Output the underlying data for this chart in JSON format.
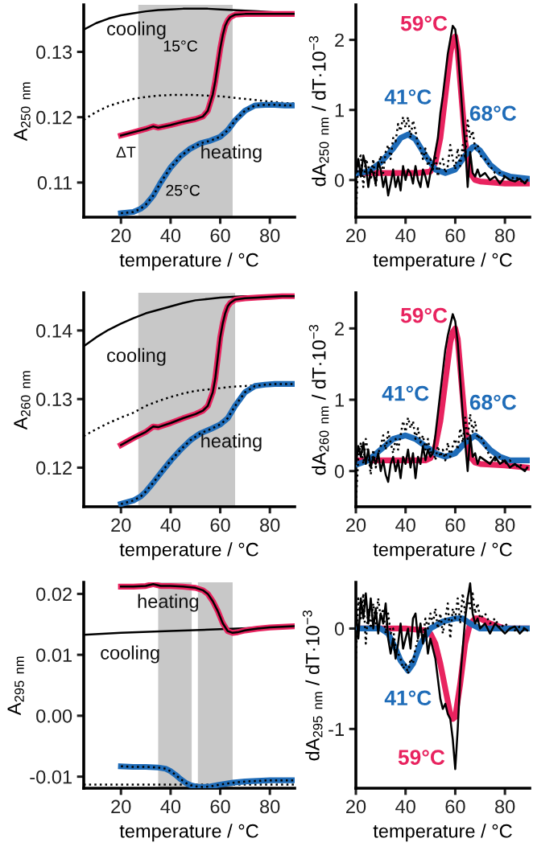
{
  "chart_data": [
    {
      "type": "line",
      "xlabel": "temperature / °C",
      "ylabel": "A$_{250 nm}$",
      "xlim": [
        5,
        90
      ],
      "ylim": [
        0.1047,
        0.1372
      ],
      "xticks": [
        20,
        40,
        60,
        80
      ],
      "yticks": [
        0.11,
        0.12,
        0.13
      ],
      "legend": false,
      "marker": "none",
      "bands": [
        {
          "axis": "x",
          "from": 51,
          "to": 65,
          "color": "#c8c8c8",
          "label": "15°C"
        },
        {
          "axis": "x",
          "from": 27,
          "to": 52,
          "color": "#c8c8c8",
          "label": "25°C"
        }
      ],
      "annotations": [
        "cooling",
        "heating",
        "ΔT"
      ],
      "series": [
        {
          "color": "#000000",
          "line_style": "solid",
          "x": [
            5,
            10,
            15,
            20,
            25,
            30,
            35,
            40,
            45,
            50,
            55,
            60,
            65,
            70,
            75,
            80,
            85,
            90
          ],
          "values": [
            0.1334,
            0.1344,
            0.1351,
            0.1356,
            0.1359,
            0.1362,
            0.1364,
            0.1365,
            0.1366,
            0.1366,
            0.1366,
            0.1365,
            0.1364,
            0.1363,
            0.1362,
            0.1361,
            0.136,
            0.136
          ]
        },
        {
          "color": "#000000",
          "line_style": "dotted",
          "x": [
            5,
            10,
            15,
            20,
            25,
            30,
            35,
            40,
            45,
            50,
            55,
            60,
            65,
            70,
            75,
            80,
            85,
            90
          ],
          "values": [
            0.1196,
            0.1208,
            0.1217,
            0.1223,
            0.1228,
            0.1231,
            0.1233,
            0.1234,
            0.1234,
            0.1234,
            0.1233,
            0.1232,
            0.123,
            0.1228,
            0.1226,
            0.1224,
            0.1222,
            0.1221
          ]
        },
        {
          "color": "#e8235f",
          "line_style": "solid",
          "x": [
            20,
            25,
            30,
            33,
            35,
            40,
            45,
            50,
            53,
            55,
            57,
            58,
            59,
            60,
            61,
            62,
            63,
            64,
            66,
            70,
            75,
            80,
            85,
            90
          ],
          "values": [
            0.1172,
            0.1177,
            0.1182,
            0.1186,
            0.1184,
            0.1188,
            0.1193,
            0.1197,
            0.1201,
            0.121,
            0.1235,
            0.1255,
            0.128,
            0.1305,
            0.1325,
            0.134,
            0.1348,
            0.1353,
            0.1357,
            0.1358,
            0.1358,
            0.1358,
            0.1358,
            0.1358
          ]
        },
        {
          "color": "#000000",
          "line_style": "solid",
          "x": [
            20,
            25,
            30,
            33,
            35,
            40,
            45,
            50,
            53,
            55,
            57,
            58,
            59,
            60,
            61,
            62,
            63,
            64,
            66,
            70,
            75,
            80,
            85,
            90
          ],
          "values": [
            0.1172,
            0.1177,
            0.1182,
            0.1186,
            0.1184,
            0.1188,
            0.1193,
            0.1197,
            0.1201,
            0.121,
            0.1235,
            0.1255,
            0.128,
            0.1305,
            0.1325,
            0.134,
            0.1348,
            0.1353,
            0.1357,
            0.1358,
            0.1358,
            0.1358,
            0.1358,
            0.1358
          ]
        },
        {
          "color": "#1f6cb8",
          "line_style": "solid",
          "x": [
            20,
            25,
            28,
            30,
            33,
            36,
            40,
            44,
            48,
            52,
            56,
            60,
            63,
            66,
            70,
            74,
            78,
            82,
            86,
            90
          ],
          "values": [
            0.1053,
            0.1055,
            0.106,
            0.1066,
            0.108,
            0.11,
            0.1123,
            0.114,
            0.1152,
            0.116,
            0.1164,
            0.117,
            0.118,
            0.1195,
            0.121,
            0.1218,
            0.1219,
            0.1219,
            0.1218,
            0.1218
          ]
        },
        {
          "color": "#000000",
          "line_style": "dotted",
          "x": [
            20,
            25,
            28,
            30,
            33,
            36,
            40,
            44,
            48,
            52,
            56,
            60,
            63,
            66,
            70,
            74,
            78,
            82,
            86,
            90
          ],
          "values": [
            0.1053,
            0.1055,
            0.106,
            0.1066,
            0.108,
            0.11,
            0.1123,
            0.114,
            0.1152,
            0.116,
            0.1164,
            0.117,
            0.118,
            0.1195,
            0.121,
            0.1218,
            0.1219,
            0.1219,
            0.1218,
            0.1218
          ]
        }
      ]
    },
    {
      "type": "line",
      "xlabel": "temperature / °C",
      "ylabel": "dA$_{250 nm}$ / dT·10$^{−3}$",
      "xlim": [
        20,
        90
      ],
      "ylim": [
        -0.53,
        2.5
      ],
      "xticks": [
        20,
        40,
        60,
        80
      ],
      "yticks": [
        0,
        1,
        2
      ],
      "legend": false,
      "marker": "none",
      "annotations": [
        {
          "text": "59°C",
          "x": 60,
          "y": 2.05
        },
        {
          "text": "41°C",
          "x": 41,
          "y": 0.65
        },
        {
          "text": "68°C",
          "x": 68,
          "y": 0.48
        }
      ],
      "series": [
        {
          "color": "#e8235f",
          "line_style": "solid",
          "x": [
            20,
            30,
            40,
            45,
            50,
            52,
            54,
            56,
            58,
            59,
            60,
            61,
            62,
            64,
            66,
            68,
            70,
            80,
            89
          ],
          "values": [
            0.1,
            0.1,
            0.1,
            0.1,
            0.12,
            0.25,
            0.6,
            1.2,
            1.8,
            2.0,
            2.05,
            1.85,
            1.4,
            0.55,
            0.1,
            0.0,
            -0.02,
            -0.05,
            -0.05
          ]
        },
        {
          "color": "#1f6cb8",
          "line_style": "solid",
          "x": [
            21,
            25,
            30,
            35,
            38,
            41,
            44,
            48,
            52,
            56,
            60,
            64,
            67,
            68,
            70,
            74,
            78,
            82,
            89
          ],
          "values": [
            0.1,
            0.12,
            0.25,
            0.45,
            0.6,
            0.65,
            0.58,
            0.35,
            0.15,
            0.1,
            0.15,
            0.35,
            0.47,
            0.48,
            0.42,
            0.22,
            0.1,
            0.05,
            0.02
          ]
        },
        {
          "color": "#000000",
          "line_style": "dotted",
          "x": [
            20,
            21,
            22,
            23,
            24,
            25,
            26,
            27,
            28,
            29,
            30,
            31,
            32,
            33,
            34,
            35,
            36,
            37,
            38,
            39,
            40,
            41,
            42,
            43,
            44,
            45,
            46,
            47,
            48,
            49,
            50,
            51,
            52,
            53,
            54,
            55,
            56,
            57,
            58,
            59,
            60,
            61,
            62,
            63,
            64,
            65,
            66,
            67,
            68,
            69,
            70,
            72,
            74,
            76,
            78,
            80,
            82,
            84,
            86,
            88,
            89
          ],
          "values": [
            -0.5,
            0.3,
            0.35,
            -0.1,
            0.3,
            0.2,
            0.0,
            0.3,
            -0.1,
            0.2,
            0.35,
            0.1,
            0.4,
            0.5,
            0.3,
            0.6,
            0.55,
            0.8,
            0.7,
            0.9,
            0.75,
            0.9,
            0.6,
            0.85,
            0.7,
            0.5,
            0.45,
            0.3,
            0.45,
            0.2,
            0.3,
            0.15,
            0.35,
            0.05,
            0.25,
            0.3,
            0.1,
            0.2,
            0.5,
            0.3,
            0.15,
            0.45,
            0.2,
            0.5,
            0.3,
            0.85,
            0.6,
            0.7,
            0.45,
            0.5,
            0.35,
            0.3,
            0.2,
            0.1,
            0.1,
            0.05,
            0.0,
            0.05,
            0.0,
            -0.05,
            0.0
          ]
        },
        {
          "color": "#000000",
          "line_style": "solid",
          "x": [
            20,
            21,
            22,
            23,
            24,
            25,
            26,
            27,
            28,
            29,
            30,
            31,
            32,
            33,
            34,
            35,
            36,
            37,
            38,
            39,
            40,
            41,
            42,
            43,
            44,
            45,
            46,
            47,
            48,
            49,
            50,
            51,
            52,
            53,
            54,
            55,
            56,
            57,
            58,
            59,
            60,
            61,
            62,
            63,
            64,
            65,
            66,
            67,
            68,
            69,
            70,
            72,
            74,
            76,
            78,
            80,
            82,
            84,
            86,
            88,
            89
          ],
          "values": [
            0.1,
            0.3,
            0.05,
            0.35,
            0.2,
            -0.1,
            0.15,
            0.1,
            -0.05,
            0.25,
            0.15,
            -0.1,
            0.05,
            -0.22,
            -0.05,
            0.15,
            -0.1,
            0.05,
            -0.15,
            0.2,
            0.0,
            0.15,
            0.1,
            -0.05,
            0.2,
            0.0,
            -0.1,
            0.15,
            0.05,
            -0.1,
            0.1,
            0.2,
            0.4,
            0.6,
            0.95,
            1.2,
            1.5,
            1.8,
            2.0,
            2.2,
            2.15,
            1.85,
            1.4,
            0.9,
            0.5,
            -0.1,
            0.4,
            0.1,
            0.05,
            0.15,
            0.05,
            0.1,
            0.0,
            0.05,
            -0.05,
            0.05,
            0.0,
            -0.02,
            0.02,
            -0.05,
            0.0
          ]
        }
      ]
    },
    {
      "type": "line",
      "xlabel": "temperature / °C",
      "ylabel": "A$_{260 nm}$",
      "xlim": [
        5,
        90
      ],
      "ylim": [
        0.1143,
        0.1455
      ],
      "xticks": [
        20,
        40,
        60,
        80
      ],
      "yticks": [
        0.12,
        0.13,
        0.14
      ],
      "legend": false,
      "marker": "none",
      "bands": [
        {
          "axis": "x",
          "from": 51,
          "to": 66,
          "color": "#c8c8c8"
        },
        {
          "axis": "x",
          "from": 27,
          "to": 52,
          "color": "#c8c8c8"
        }
      ],
      "annotations": [
        "cooling",
        "heating"
      ],
      "series": [
        {
          "color": "#000000",
          "line_style": "solid",
          "x": [
            5,
            10,
            15,
            20,
            25,
            30,
            35,
            40,
            45,
            50,
            55,
            60,
            65,
            70,
            75,
            80,
            85,
            90
          ],
          "values": [
            0.1377,
            0.139,
            0.1401,
            0.141,
            0.1418,
            0.1425,
            0.143,
            0.1435,
            0.144,
            0.1444,
            0.1446,
            0.1448,
            0.1449,
            0.145,
            0.145,
            0.145,
            0.145,
            0.145
          ]
        },
        {
          "color": "#000000",
          "line_style": "dotted",
          "x": [
            5,
            10,
            15,
            20,
            25,
            30,
            35,
            40,
            45,
            50,
            55,
            60,
            65,
            70,
            75,
            80,
            85,
            90
          ],
          "values": [
            0.1246,
            0.1256,
            0.1265,
            0.1273,
            0.128,
            0.129,
            0.1297,
            0.1303,
            0.1308,
            0.1312,
            0.1314,
            0.1316,
            0.1318,
            0.1319,
            0.132,
            0.1321,
            0.1322,
            0.1322
          ]
        },
        {
          "color": "#e8235f",
          "line_style": "solid",
          "x": [
            20,
            25,
            30,
            33,
            35,
            40,
            45,
            50,
            53,
            55,
            57,
            58,
            59,
            60,
            61,
            62,
            63,
            64,
            66,
            70,
            75,
            80,
            85,
            90
          ],
          "values": [
            0.1233,
            0.1243,
            0.1252,
            0.126,
            0.1259,
            0.1265,
            0.1272,
            0.1278,
            0.1283,
            0.129,
            0.131,
            0.133,
            0.136,
            0.139,
            0.141,
            0.1425,
            0.1435,
            0.144,
            0.1445,
            0.1447,
            0.1448,
            0.1449,
            0.145,
            0.145
          ]
        },
        {
          "color": "#000000",
          "line_style": "solid",
          "x": [
            20,
            25,
            30,
            33,
            35,
            40,
            45,
            50,
            53,
            55,
            57,
            58,
            59,
            60,
            61,
            62,
            63,
            64,
            66,
            70,
            75,
            80,
            85,
            90
          ],
          "values": [
            0.1233,
            0.1243,
            0.1252,
            0.126,
            0.1259,
            0.1265,
            0.1272,
            0.1278,
            0.1283,
            0.129,
            0.131,
            0.133,
            0.136,
            0.139,
            0.141,
            0.1425,
            0.1435,
            0.144,
            0.1445,
            0.1447,
            0.1448,
            0.1449,
            0.145,
            0.145
          ]
        },
        {
          "color": "#1f6cb8",
          "line_style": "solid",
          "x": [
            20,
            25,
            28,
            30,
            33,
            36,
            40,
            44,
            48,
            52,
            56,
            60,
            63,
            66,
            70,
            74,
            78,
            82,
            86,
            90
          ],
          "values": [
            0.1147,
            0.1152,
            0.1158,
            0.1165,
            0.1178,
            0.1192,
            0.121,
            0.1226,
            0.124,
            0.125,
            0.1256,
            0.1263,
            0.1272,
            0.129,
            0.131,
            0.1319,
            0.1321,
            0.1322,
            0.1322,
            0.1322
          ]
        },
        {
          "color": "#000000",
          "line_style": "dotted",
          "x": [
            20,
            25,
            28,
            30,
            33,
            36,
            40,
            44,
            48,
            52,
            56,
            60,
            63,
            66,
            70,
            74,
            78,
            82,
            86,
            90
          ],
          "values": [
            0.1147,
            0.1152,
            0.1158,
            0.1165,
            0.1178,
            0.1192,
            0.121,
            0.1226,
            0.124,
            0.125,
            0.1256,
            0.1263,
            0.1272,
            0.129,
            0.131,
            0.1319,
            0.1321,
            0.1322,
            0.1322,
            0.1322
          ]
        }
      ]
    },
    {
      "type": "line",
      "xlabel": "temperature / °C",
      "ylabel": "dA$_{260 nm}$ / dT·10$^{−3}$",
      "xlim": [
        20,
        90
      ],
      "ylim": [
        -0.5,
        2.5
      ],
      "xticks": [
        20,
        40,
        60,
        80
      ],
      "yticks": [
        0,
        1,
        2
      ],
      "legend": false,
      "marker": "none",
      "annotations": [
        {
          "text": "59°C",
          "x": 60,
          "y": 2.0
        },
        {
          "text": "41°C",
          "x": 40,
          "y": 0.5
        },
        {
          "text": "68°C",
          "x": 68,
          "y": 0.5
        }
      ],
      "series": [
        {
          "color": "#e8235f",
          "line_style": "solid",
          "x": [
            20,
            30,
            40,
            48,
            50,
            52,
            54,
            56,
            58,
            59,
            60,
            61,
            62,
            64,
            66,
            68,
            70,
            80,
            89
          ],
          "values": [
            0.15,
            0.15,
            0.15,
            0.15,
            0.18,
            0.35,
            0.7,
            1.25,
            1.8,
            1.95,
            2.0,
            1.85,
            1.45,
            0.65,
            0.2,
            0.12,
            0.1,
            0.08,
            0.05
          ]
        },
        {
          "color": "#1f6cb8",
          "line_style": "solid",
          "x": [
            21,
            25,
            30,
            35,
            40,
            44,
            48,
            52,
            56,
            60,
            64,
            68,
            70,
            74,
            78,
            82,
            89
          ],
          "values": [
            0.1,
            0.15,
            0.3,
            0.45,
            0.5,
            0.45,
            0.35,
            0.25,
            0.2,
            0.25,
            0.4,
            0.5,
            0.45,
            0.3,
            0.2,
            0.15,
            0.15
          ]
        },
        {
          "color": "#000000",
          "line_style": "dotted",
          "x": [
            20,
            21,
            22,
            23,
            24,
            25,
            26,
            27,
            28,
            29,
            30,
            31,
            32,
            33,
            34,
            35,
            36,
            37,
            38,
            39,
            40,
            41,
            42,
            43,
            44,
            45,
            46,
            47,
            48,
            49,
            50,
            51,
            52,
            53,
            54,
            55,
            56,
            57,
            58,
            59,
            60,
            61,
            62,
            63,
            64,
            65,
            66,
            67,
            68,
            69,
            70,
            72,
            74,
            76,
            78,
            80,
            82,
            84,
            86,
            88,
            89
          ],
          "values": [
            -0.45,
            0.2,
            0.4,
            0.1,
            0.45,
            0.25,
            -0.05,
            0.3,
            0.05,
            0.25,
            0.35,
            0.5,
            0.3,
            0.55,
            0.4,
            0.25,
            0.45,
            0.3,
            0.5,
            0.7,
            0.55,
            0.75,
            0.6,
            0.7,
            0.45,
            0.6,
            0.4,
            0.5,
            0.3,
            0.45,
            0.25,
            0.3,
            0.15,
            0.35,
            0.2,
            0.3,
            0.15,
            0.4,
            0.2,
            0.35,
            0.45,
            0.3,
            0.6,
            0.4,
            0.75,
            0.45,
            0.8,
            0.55,
            0.7,
            0.45,
            0.5,
            0.35,
            0.2,
            0.15,
            0.2,
            0.1,
            0.15,
            0.05,
            0.1,
            0.0,
            0.05
          ]
        },
        {
          "color": "#000000",
          "line_style": "solid",
          "x": [
            20,
            21,
            22,
            23,
            24,
            25,
            26,
            27,
            28,
            29,
            30,
            31,
            32,
            33,
            34,
            35,
            36,
            37,
            38,
            39,
            40,
            41,
            42,
            43,
            44,
            45,
            46,
            47,
            48,
            49,
            50,
            51,
            52,
            53,
            54,
            55,
            56,
            57,
            58,
            59,
            60,
            61,
            62,
            63,
            64,
            65,
            66,
            67,
            68,
            69,
            70,
            72,
            74,
            76,
            78,
            80,
            82,
            84,
            86,
            88,
            89
          ],
          "values": [
            0.1,
            0.35,
            0.2,
            0.4,
            0.1,
            0.3,
            0.05,
            0.2,
            0.1,
            0.25,
            0.0,
            0.15,
            -0.05,
            -0.15,
            0.1,
            0.2,
            0.0,
            0.15,
            -0.1,
            0.2,
            0.1,
            0.3,
            0.05,
            0.25,
            -0.1,
            0.2,
            0.1,
            0.35,
            0.15,
            0.3,
            0.2,
            0.25,
            0.5,
            0.8,
            1.1,
            1.4,
            1.7,
            1.9,
            2.05,
            2.2,
            2.1,
            1.8,
            1.3,
            0.8,
            0.4,
            0.0,
            0.5,
            0.2,
            0.25,
            0.1,
            0.2,
            0.15,
            0.1,
            0.2,
            0.1,
            0.15,
            0.05,
            0.1,
            0.05,
            0.0,
            0.05
          ]
        }
      ]
    },
    {
      "type": "line",
      "xlabel": "temperature / °C",
      "ylabel": "A$_{295 nm}$",
      "xlim": [
        5,
        90
      ],
      "ylim": [
        -0.0119,
        0.0219
      ],
      "xticks": [
        20,
        40,
        60,
        80
      ],
      "yticks": [
        0.02,
        0.01,
        {
          "value": 0,
          "label": "0.00"
        },
        -0.01
      ],
      "legend": false,
      "marker": "none",
      "bands": [
        {
          "axis": "x",
          "from": 51,
          "to": 65,
          "color": "#c8c8c8"
        },
        {
          "axis": "x",
          "from": 35,
          "to": 48.5,
          "color": "#c8c8c8"
        }
      ],
      "annotations": [
        "heating",
        "cooling"
      ],
      "series": [
        {
          "color": "#000000",
          "line_style": "solid",
          "x": [
            5,
            20,
            40,
            60,
            80,
            90
          ],
          "values": [
            0.0133,
            0.0136,
            0.0139,
            0.0142,
            0.0145,
            0.0147
          ]
        },
        {
          "color": "#000000",
          "line_style": "dotted",
          "x": [
            5,
            20,
            40,
            60,
            80,
            90
          ],
          "values": [
            -0.0113,
            -0.0113,
            -0.0113,
            -0.0113,
            -0.0113,
            -0.0113
          ]
        },
        {
          "color": "#e8235f",
          "line_style": "solid",
          "x": [
            20,
            25,
            30,
            33,
            36,
            40,
            45,
            50,
            53,
            55,
            57,
            59,
            61,
            63,
            65,
            67,
            70,
            75,
            80,
            85,
            90
          ],
          "values": [
            0.0212,
            0.0212,
            0.0213,
            0.0216,
            0.0213,
            0.0213,
            0.0212,
            0.021,
            0.0206,
            0.02,
            0.0188,
            0.0172,
            0.0152,
            0.0139,
            0.0136,
            0.0137,
            0.014,
            0.0143,
            0.0145,
            0.0146,
            0.0147
          ]
        },
        {
          "color": "#000000",
          "line_style": "solid",
          "x": [
            20,
            25,
            30,
            33,
            36,
            40,
            45,
            50,
            53,
            55,
            57,
            59,
            61,
            63,
            65,
            67,
            70,
            75,
            80,
            85,
            90
          ],
          "values": [
            0.0212,
            0.0212,
            0.0213,
            0.0216,
            0.0213,
            0.0213,
            0.0212,
            0.021,
            0.0206,
            0.02,
            0.0188,
            0.0172,
            0.0152,
            0.0139,
            0.0136,
            0.0137,
            0.014,
            0.0143,
            0.0145,
            0.0146,
            0.0147
          ]
        },
        {
          "color": "#1f6cb8",
          "line_style": "solid",
          "x": [
            20,
            25,
            30,
            35,
            38,
            40,
            42,
            44,
            46,
            48,
            50,
            53,
            56,
            60,
            65,
            70,
            75,
            80,
            85,
            90
          ],
          "values": [
            -0.0083,
            -0.0084,
            -0.0084,
            -0.0085,
            -0.0087,
            -0.0091,
            -0.0097,
            -0.0104,
            -0.011,
            -0.0114,
            -0.0116,
            -0.0117,
            -0.0116,
            -0.0113,
            -0.011,
            -0.0108,
            -0.0107,
            -0.0106,
            -0.0106,
            -0.0106
          ]
        },
        {
          "color": "#000000",
          "line_style": "dotted",
          "x": [
            20,
            25,
            30,
            35,
            38,
            40,
            42,
            44,
            46,
            48,
            50,
            53,
            56,
            60,
            65,
            70,
            75,
            80,
            85,
            90
          ],
          "values": [
            -0.0083,
            -0.0084,
            -0.0084,
            -0.0085,
            -0.0087,
            -0.0091,
            -0.0097,
            -0.0104,
            -0.011,
            -0.0114,
            -0.0116,
            -0.0117,
            -0.0116,
            -0.0113,
            -0.011,
            -0.0108,
            -0.0107,
            -0.0106,
            -0.0106,
            -0.0106
          ]
        }
      ]
    },
    {
      "type": "line",
      "xlabel": "temperature / °C",
      "ylabel": "dA$_{295 nm}$ / dT·10$^{−3}$",
      "xlim": [
        20,
        90
      ],
      "ylim": [
        -1.59,
        0.46
      ],
      "xticks": [
        20,
        40,
        60,
        80
      ],
      "yticks": [
        0,
        -1
      ],
      "legend": false,
      "marker": "none",
      "annotations": [
        {
          "text": "41°C",
          "x": 41,
          "y": -0.42
        },
        {
          "text": "59°C",
          "x": 59,
          "y": -0.9
        }
      ],
      "series": [
        {
          "color": "#e8235f",
          "line_style": "solid",
          "x": [
            20,
            40,
            48,
            50,
            52,
            54,
            56,
            58,
            59,
            60,
            62,
            64,
            66,
            68,
            70,
            74,
            80,
            89
          ],
          "values": [
            0.0,
            0.0,
            -0.02,
            -0.05,
            -0.15,
            -0.35,
            -0.6,
            -0.85,
            -0.9,
            -0.88,
            -0.55,
            -0.15,
            0.05,
            0.1,
            0.1,
            0.05,
            0.0,
            0.0
          ]
        },
        {
          "color": "#1f6cb8",
          "line_style": "solid",
          "x": [
            20,
            30,
            33,
            36,
            38,
            41,
            43,
            46,
            50,
            55,
            60,
            63,
            66,
            70,
            89
          ],
          "values": [
            0.0,
            0.0,
            -0.05,
            -0.2,
            -0.32,
            -0.42,
            -0.35,
            -0.15,
            0.0,
            0.07,
            0.1,
            0.1,
            0.05,
            0.0,
            0.0
          ]
        },
        {
          "color": "#000000",
          "line_style": "dotted",
          "x": [
            20,
            21,
            22,
            23,
            24,
            25,
            26,
            27,
            28,
            29,
            30,
            31,
            32,
            33,
            34,
            35,
            36,
            37,
            38,
            39,
            40,
            41,
            42,
            43,
            44,
            45,
            46,
            47,
            48,
            49,
            50,
            51,
            52,
            53,
            54,
            55,
            56,
            57,
            58,
            59,
            60,
            61,
            62,
            63,
            64,
            65,
            66,
            67,
            68,
            69,
            70,
            72,
            74,
            76,
            78,
            80,
            82,
            84,
            86,
            88,
            89
          ],
          "values": [
            -0.3,
            0.3,
            0.1,
            0.35,
            -0.15,
            0.2,
            0.0,
            0.25,
            0.05,
            0.3,
            0.1,
            0.2,
            -0.05,
            0.15,
            -0.05,
            0.0,
            -0.2,
            -0.25,
            -0.3,
            -0.4,
            -0.35,
            -0.45,
            -0.3,
            -0.35,
            -0.2,
            -0.1,
            0.0,
            -0.1,
            0.1,
            0.0,
            0.15,
            0.05,
            0.2,
            0.0,
            0.15,
            -0.05,
            0.1,
            0.25,
            -0.1,
            0.2,
            0.1,
            0.3,
            0.05,
            0.35,
            0.15,
            0.3,
            0.2,
            0.35,
            0.15,
            0.25,
            0.1,
            0.15,
            0.05,
            0.1,
            0.0,
            0.05,
            0.0,
            -0.02,
            0.02,
            0.0,
            0.0
          ]
        },
        {
          "color": "#000000",
          "line_style": "solid",
          "x": [
            20,
            21,
            22,
            23,
            24,
            25,
            26,
            27,
            28,
            29,
            30,
            31,
            32,
            33,
            34,
            35,
            36,
            37,
            38,
            39,
            40,
            41,
            42,
            43,
            44,
            45,
            46,
            47,
            48,
            49,
            50,
            51,
            52,
            53,
            54,
            55,
            56,
            57,
            58,
            59,
            60,
            61,
            62,
            63,
            64,
            65,
            66,
            67,
            68,
            69,
            70,
            72,
            74,
            76,
            78,
            80,
            82,
            84,
            86,
            88,
            89
          ],
          "values": [
            0.2,
            -0.1,
            0.3,
            0.1,
            0.35,
            0.05,
            0.3,
            0.0,
            0.2,
            -0.05,
            0.15,
            0.05,
            0.25,
            -0.1,
            -0.25,
            -0.1,
            -0.3,
            -0.15,
            0.05,
            -0.2,
            -0.1,
            0.0,
            -0.2,
            0.1,
            0.15,
            -0.1,
            0.05,
            -0.15,
            0.0,
            -0.25,
            -0.1,
            -0.2,
            -0.3,
            -0.5,
            -0.7,
            -0.8,
            -0.75,
            -0.85,
            -0.9,
            -1.1,
            -1.4,
            -1.0,
            -0.5,
            -0.2,
            0.1,
            0.3,
            0.45,
            0.15,
            0.05,
            0.1,
            0.0,
            0.05,
            -0.05,
            0.05,
            0.0,
            -0.05,
            0.0,
            0.02,
            -0.05,
            0.0,
            -0.02
          ]
        }
      ]
    }
  ]
}
